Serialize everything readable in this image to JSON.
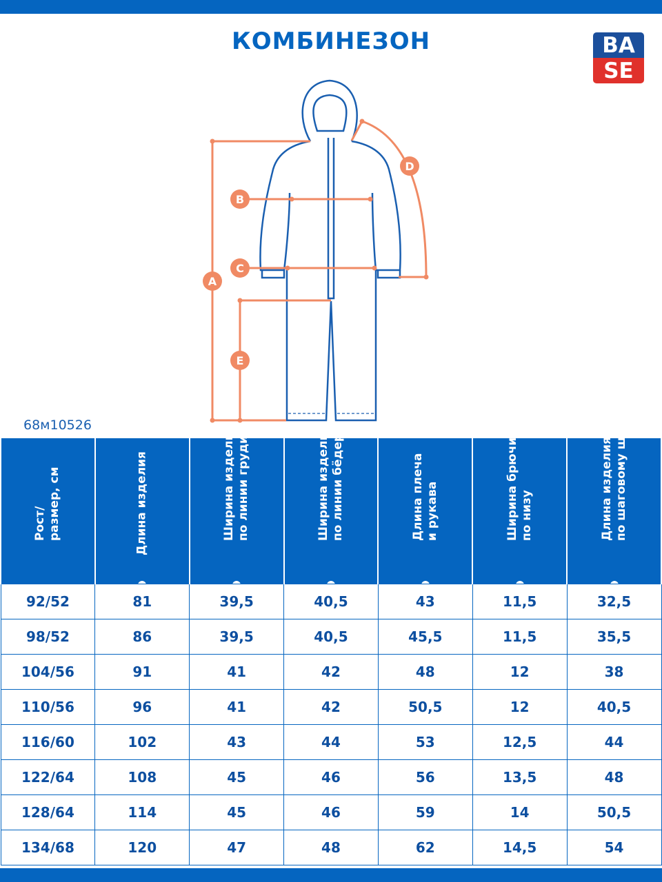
{
  "title": "КОМБИНЕЗОН",
  "logo": {
    "text": "BASE",
    "top": "BA",
    "bottom": "SE",
    "colors": {
      "top": "#1b4f9c",
      "bottom": "#e0312b"
    }
  },
  "article": "68м10526",
  "diagram": {
    "labels": [
      "A",
      "B",
      "C",
      "D",
      "E"
    ],
    "colors": {
      "measure": "#f08a64",
      "garment": "#1a5fb0"
    }
  },
  "table": {
    "headers": [
      {
        "line1": "Рост/",
        "line2": "размер, см"
      },
      {
        "line1": "Длина изделия",
        "line2": ""
      },
      {
        "line1": "Ширина изделия",
        "line2": "по линии груди"
      },
      {
        "line1": "Ширина изделия",
        "line2": "по линии бёдер"
      },
      {
        "line1": "Длина плеча",
        "line2": "и рукава"
      },
      {
        "line1": "Ширина брючины",
        "line2": "по низу"
      },
      {
        "line1": "Длина изделия",
        "line2": "по шаговому шву"
      }
    ],
    "rows": [
      [
        "92/52",
        "81",
        "39,5",
        "40,5",
        "43",
        "11,5",
        "32,5"
      ],
      [
        "98/52",
        "86",
        "39,5",
        "40,5",
        "45,5",
        "11,5",
        "35,5"
      ],
      [
        "104/56",
        "91",
        "41",
        "42",
        "48",
        "12",
        "38"
      ],
      [
        "110/56",
        "96",
        "41",
        "42",
        "50,5",
        "12",
        "40,5"
      ],
      [
        "116/60",
        "102",
        "43",
        "44",
        "53",
        "12,5",
        "44"
      ],
      [
        "122/64",
        "108",
        "45",
        "46",
        "56",
        "13,5",
        "48"
      ],
      [
        "128/64",
        "114",
        "45",
        "46",
        "59",
        "14",
        "50,5"
      ],
      [
        "134/68",
        "120",
        "47",
        "48",
        "62",
        "14,5",
        "54"
      ]
    ]
  },
  "colors": {
    "brand_blue": "#0565c0",
    "accent": "#f08a64"
  }
}
